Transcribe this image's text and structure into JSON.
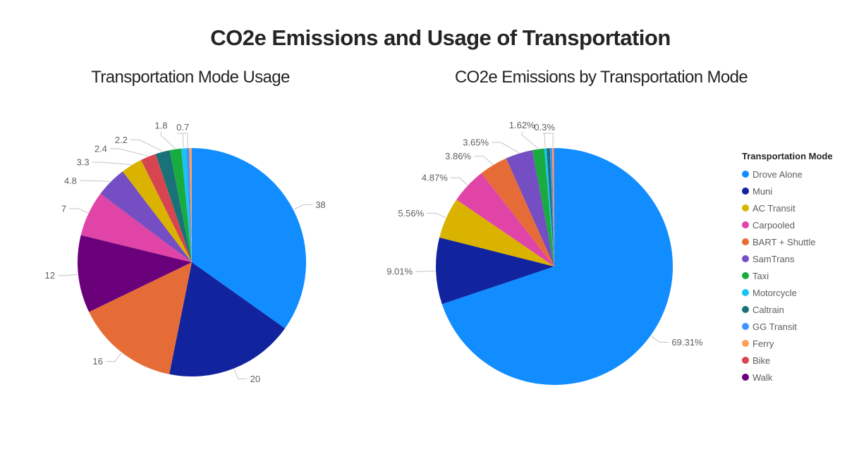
{
  "main_title": "CO2e Emissions and Usage of Transportation",
  "legend": {
    "title": "Transportation Mode",
    "items": [
      {
        "label": "Drove Alone",
        "color": "#118DFF"
      },
      {
        "label": "Muni",
        "color": "#12239E"
      },
      {
        "label": "AC Transit",
        "color": "#D9B300"
      },
      {
        "label": "Carpooled",
        "color": "#E044A7"
      },
      {
        "label": "BART + Shuttle",
        "color": "#E66C37"
      },
      {
        "label": "SamTrans",
        "color": "#744EC2"
      },
      {
        "label": "Taxi",
        "color": "#1AAB40"
      },
      {
        "label": "Motorcycle",
        "color": "#15C6F4"
      },
      {
        "label": "Caltrain",
        "color": "#197278"
      },
      {
        "label": "GG Transit",
        "color": "#4092FF"
      },
      {
        "label": "Ferry",
        "color": "#FFA058"
      },
      {
        "label": "Bike",
        "color": "#D64550"
      },
      {
        "label": "Walk",
        "color": "#6B007B"
      }
    ]
  },
  "chart_data": [
    {
      "type": "pie",
      "title": "Transportation Mode Usage",
      "data_labels": "outside",
      "legend_position": "right",
      "slices": [
        {
          "name": "Drove Alone",
          "value": 38,
          "label": "38",
          "color": "#118DFF"
        },
        {
          "name": "Muni",
          "value": 20,
          "label": "20",
          "color": "#12239E"
        },
        {
          "name": "BART + Shuttle",
          "value": 16,
          "label": "16",
          "color": "#E66C37"
        },
        {
          "name": "Walk",
          "value": 12,
          "label": "12",
          "color": "#6B007B"
        },
        {
          "name": "Carpooled",
          "value": 7,
          "label": "7",
          "color": "#E044A7"
        },
        {
          "name": "SamTrans",
          "value": 4.8,
          "label": "4.8",
          "color": "#744EC2"
        },
        {
          "name": "AC Transit",
          "value": 3.3,
          "label": "3.3",
          "color": "#D9B300"
        },
        {
          "name": "Bike",
          "value": 2.4,
          "label": "2.4",
          "color": "#D64550"
        },
        {
          "name": "Caltrain",
          "value": 2.2,
          "label": "2.2",
          "color": "#197278"
        },
        {
          "name": "Taxi",
          "value": 1.8,
          "label": "1.8",
          "color": "#1AAB40"
        },
        {
          "name": "Motorcycle",
          "value": 0.7,
          "label": "0.7",
          "color": "#15C6F4"
        },
        {
          "name": "GG Transit",
          "value": 0.5,
          "label": "",
          "color": "#4092FF",
          "leader_elbow": true
        },
        {
          "name": "Ferry",
          "value": 0.4,
          "label": "",
          "color": "#FFA058"
        }
      ]
    },
    {
      "type": "pie",
      "title": "CO2e Emissions by Transportation Mode",
      "data_labels": "outside-percent",
      "legend_position": "right",
      "slices": [
        {
          "name": "Drove Alone",
          "value": 69.31,
          "label": "69.31%",
          "color": "#118DFF"
        },
        {
          "name": "Muni",
          "value": 9.01,
          "label": "9.01%",
          "color": "#12239E"
        },
        {
          "name": "AC Transit",
          "value": 5.56,
          "label": "5.56%",
          "color": "#D9B300"
        },
        {
          "name": "Carpooled",
          "value": 4.87,
          "label": "4.87%",
          "color": "#E044A7"
        },
        {
          "name": "BART + Shuttle",
          "value": 3.86,
          "label": "3.86%",
          "color": "#E66C37"
        },
        {
          "name": "SamTrans",
          "value": 3.65,
          "label": "3.65%",
          "color": "#744EC2"
        },
        {
          "name": "Taxi",
          "value": 1.62,
          "label": "1.62%",
          "color": "#1AAB40"
        },
        {
          "name": "Motorcycle",
          "value": 0.3,
          "label": "0.3%",
          "color": "#15C6F4"
        },
        {
          "name": "Caltrain",
          "value": 0.45,
          "label": "",
          "color": "#197278"
        },
        {
          "name": "GG Transit",
          "value": 0.3,
          "label": "",
          "color": "#4092FF"
        },
        {
          "name": "Ferry",
          "value": 0.22,
          "label": "",
          "color": "#FFA058",
          "leader_elbow": true
        },
        {
          "name": "Bike",
          "value": 0.05,
          "label": "",
          "color": "#D64550"
        },
        {
          "name": "Walk",
          "value": 0.02,
          "label": "",
          "color": "#6B007B"
        }
      ]
    }
  ]
}
